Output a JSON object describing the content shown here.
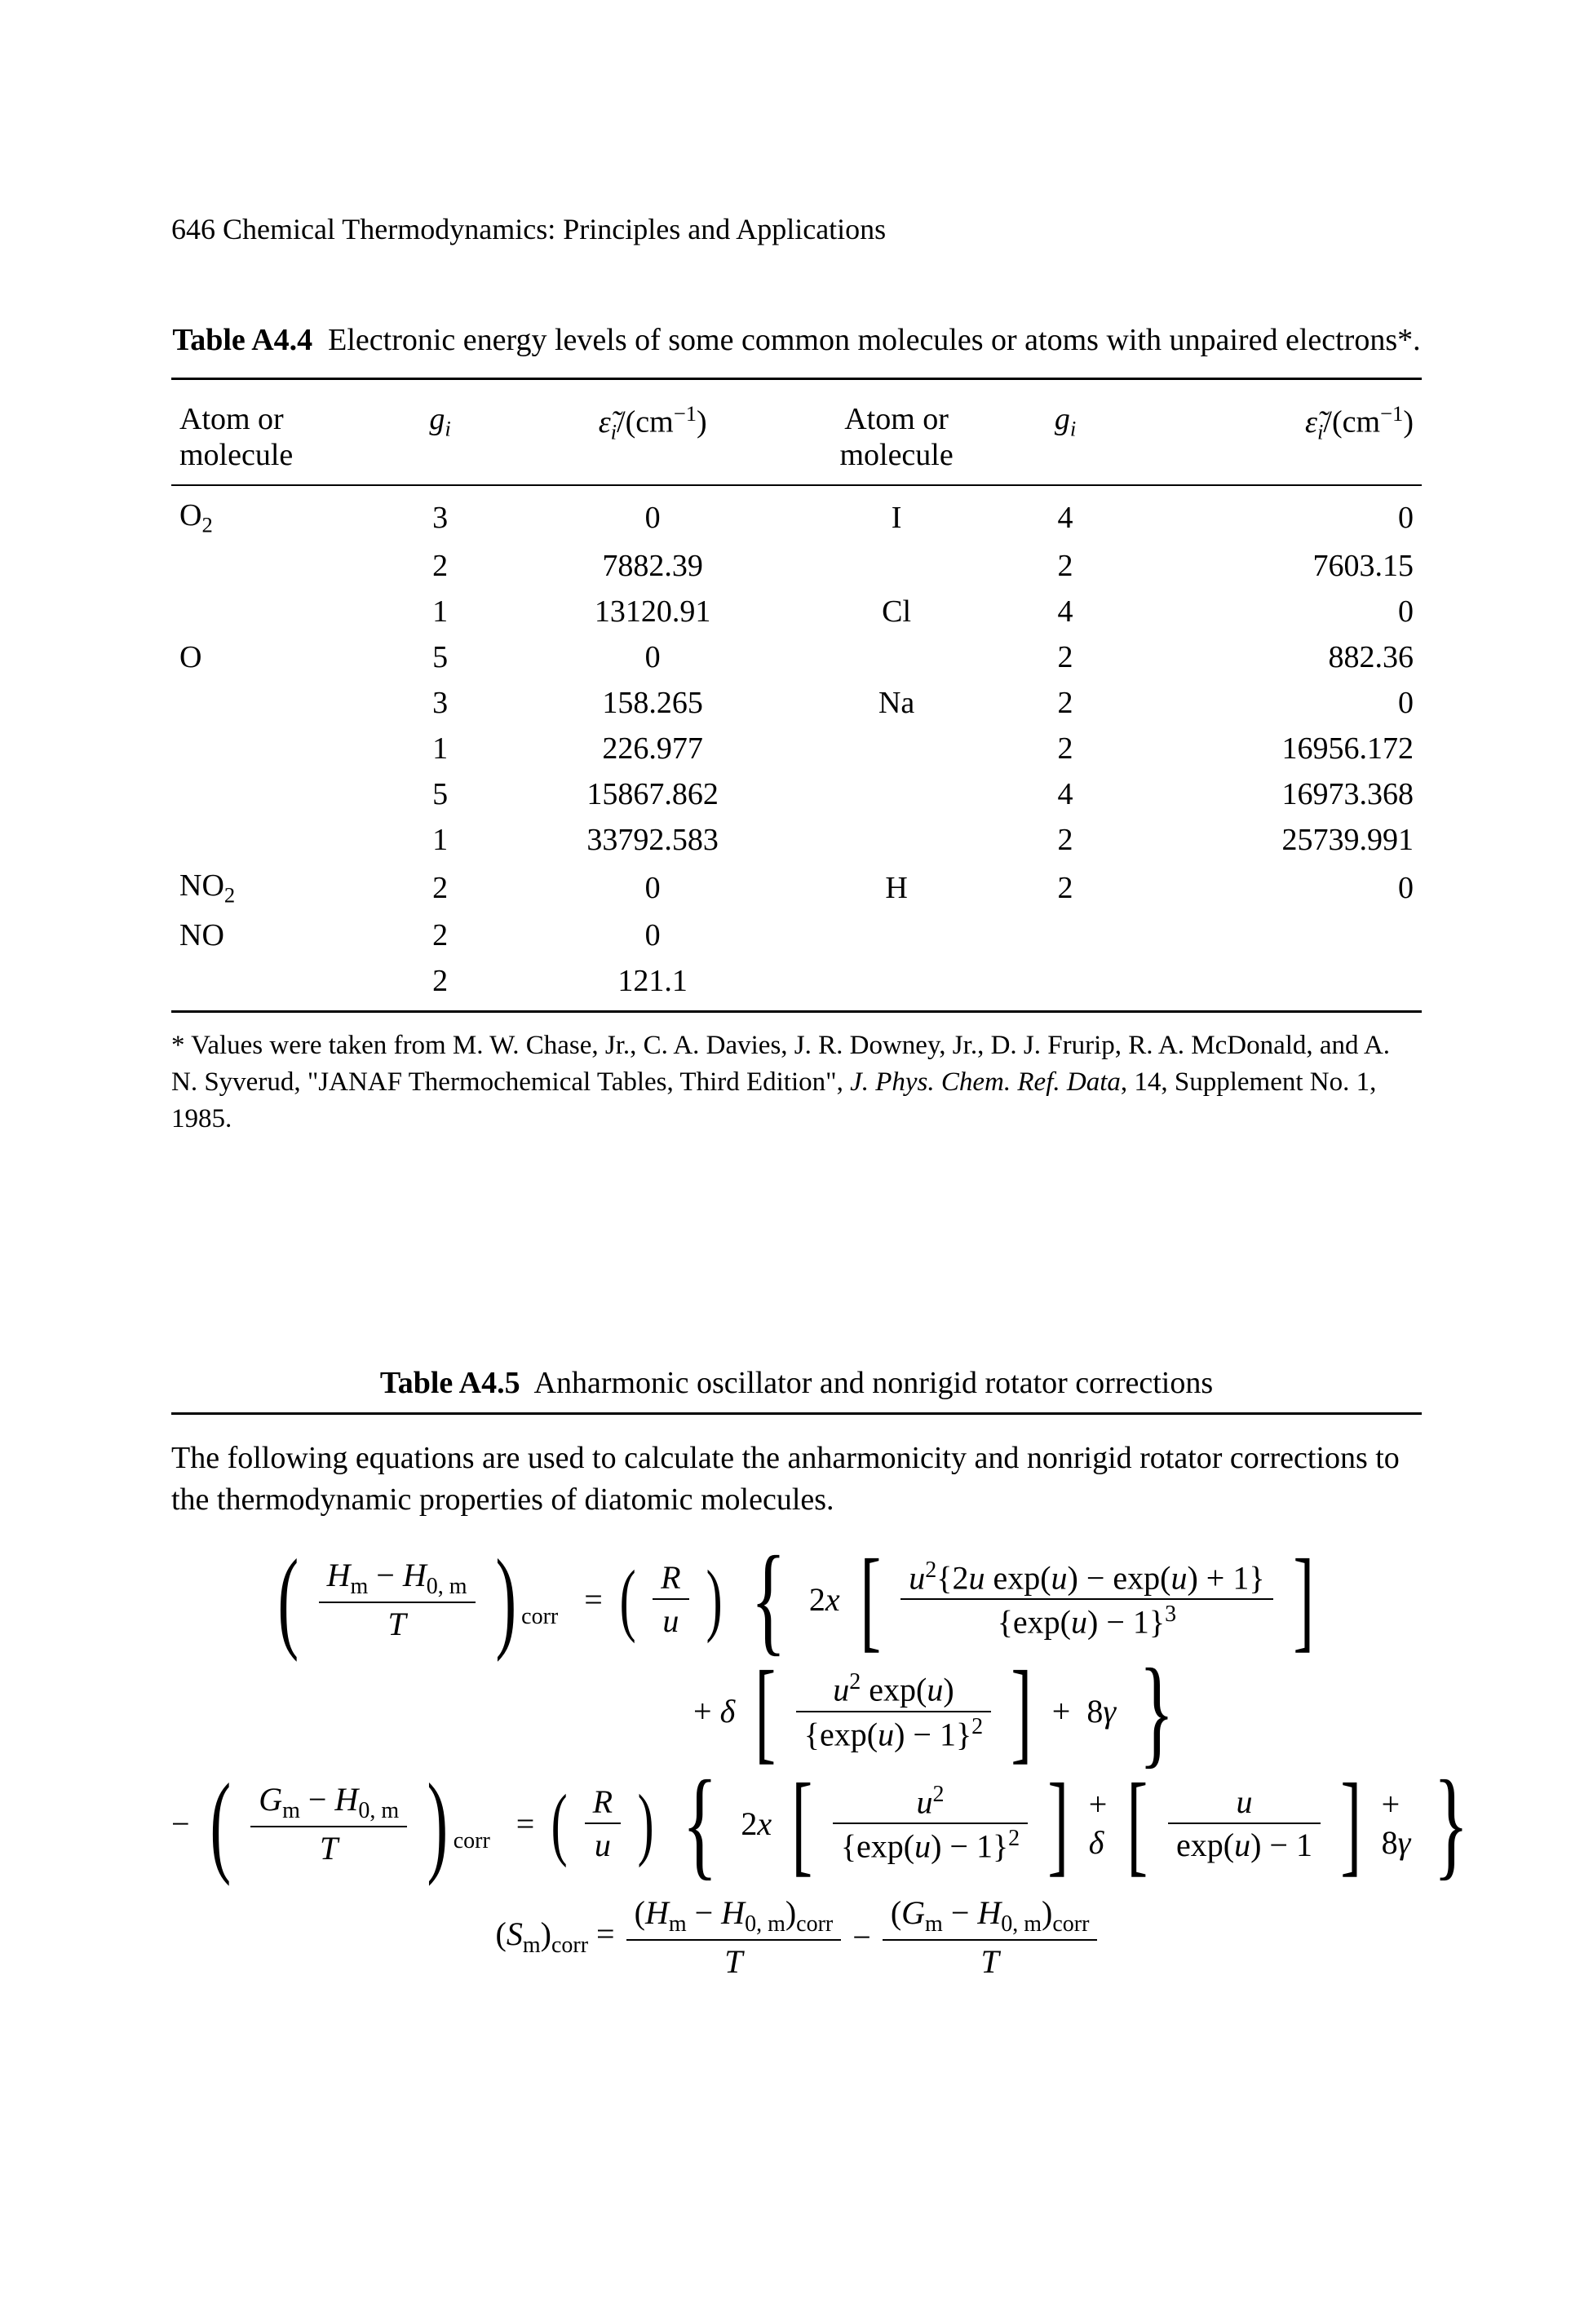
{
  "runningHead": "646   Chemical Thermodynamics: Principles and Applications",
  "tableA44": {
    "label": "Table A4.4",
    "caption": "Electronic energy levels of some common molecules or atoms with unpaired electrons*.",
    "columns": {
      "atom": "Atom or\nmolecule",
      "gi": "gᵢ",
      "eps": "ε̃ᵢ/(cm⁻¹)",
      "atom2": "Atom or\nmolecule",
      "gi2": "gᵢ",
      "eps2": "ε̃ᵢ/(cm⁻¹)"
    },
    "rows": [
      {
        "atom": "O₂",
        "gi": "3",
        "eps": "0",
        "atom2": "I",
        "gi2": "4",
        "eps2": "0"
      },
      {
        "atom": "",
        "gi": "2",
        "eps": "7882.39",
        "atom2": "",
        "gi2": "2",
        "eps2": "7603.15"
      },
      {
        "atom": "",
        "gi": "1",
        "eps": "13120.91",
        "atom2": "Cl",
        "gi2": "4",
        "eps2": "0"
      },
      {
        "atom": "O",
        "gi": "5",
        "eps": "0",
        "atom2": "",
        "gi2": "2",
        "eps2": "882.36"
      },
      {
        "atom": "",
        "gi": "3",
        "eps": "158.265",
        "atom2": "Na",
        "gi2": "2",
        "eps2": "0"
      },
      {
        "atom": "",
        "gi": "1",
        "eps": "226.977",
        "atom2": "",
        "gi2": "2",
        "eps2": "16956.172"
      },
      {
        "atom": "",
        "gi": "5",
        "eps": "15867.862",
        "atom2": "",
        "gi2": "4",
        "eps2": "16973.368"
      },
      {
        "atom": "",
        "gi": "1",
        "eps": "33792.583",
        "atom2": "",
        "gi2": "2",
        "eps2": "25739.991"
      },
      {
        "atom": "NO₂",
        "gi": "2",
        "eps": "0",
        "atom2": "H",
        "gi2": "2",
        "eps2": "0"
      },
      {
        "atom": "NO",
        "gi": "2",
        "eps": "0",
        "atom2": "",
        "gi2": "",
        "eps2": ""
      },
      {
        "atom": "",
        "gi": "2",
        "eps": "121.1",
        "atom2": "",
        "gi2": "",
        "eps2": ""
      }
    ],
    "footnote": {
      "pre": "* Values were taken from M. W. Chase, Jr., C. A. Davies, J. R. Downey, Jr., D. J. Frurip, R. A. McDonald, and A. N. Syverud, \"JANAF Thermochemical Tables, Third Edition\", ",
      "journal": "J. Phys. Chem. Ref. Data",
      "post": ", 14, Supplement No. 1, 1985."
    }
  },
  "tableA45": {
    "label": "Table A4.5",
    "caption": "Anharmonic oscillator and nonrigid rotator corrections",
    "body": "The following equations are used to calculate the anharmonicity and nonrigid rotator corrections to the thermodynamic properties of diatomic molecules.",
    "eqs": {
      "Hm": "H",
      "H0m": "H",
      "Gm": "G",
      "Sm": "S",
      "m": "m",
      "zero_m": "0, m",
      "T": "T",
      "R": "R",
      "u": "u",
      "x": "x",
      "delta": "δ",
      "gamma": "γ",
      "corr": "corr",
      "two": "2",
      "eight": "8",
      "plus": "+",
      "minus": "−",
      "one": "1",
      "eq": "=",
      "exp": "exp",
      "u2": "u²",
      "num1": "u²{2u exp(u) − exp(u) + 1}",
      "den1": "{exp(u) − 1}³",
      "num2": "u² exp(u)",
      "den2": "{exp(u) − 1}²",
      "num3": "u²",
      "den3": "{exp(u) − 1}²",
      "num4": "u",
      "den4": "exp(u) − 1",
      "SmLabel": "(Sₘ)_corr",
      "Hcorr": "(Hₘ − H₀,ₘ)_corr",
      "Gcorr": "(Gₘ − H₀,ₘ)_corr"
    }
  }
}
